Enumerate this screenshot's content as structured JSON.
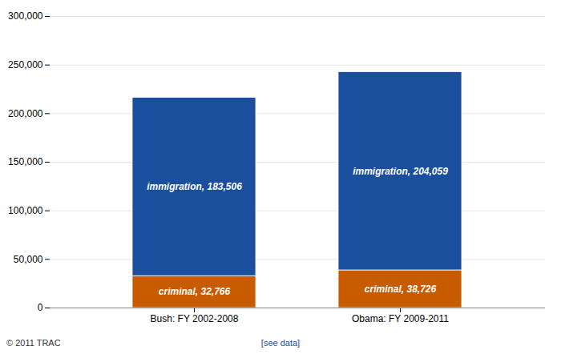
{
  "chart_data": {
    "type": "bar",
    "stacked": true,
    "categories": [
      "Bush: FY 2002-2008",
      "Obama: FY 2009-2011"
    ],
    "series": [
      {
        "color": "#c85a00",
        "values": [
          32766,
          38726
        ],
        "value_labels": [
          "criminal, 32,766",
          "criminal, 38,726"
        ]
      },
      {
        "color": "#1a4f9e",
        "values": [
          183506,
          204059
        ],
        "value_labels": [
          "immigration, 183,506",
          "immigration, 204,059"
        ]
      }
    ],
    "ylim": [
      0,
      300000
    ],
    "yticks": [
      0,
      {
        "value": 50000,
        "label": "50,000"
      },
      {
        "value": 100000,
        "label": "100,000"
      },
      {
        "value": 150000,
        "label": "150,000"
      },
      {
        "value": 200000,
        "label": "200,000"
      },
      {
        "value": 250000,
        "label": "250,000"
      },
      {
        "value": 300000,
        "label": "300,000"
      }
    ],
    "grid": true,
    "annotations": [
      "© 2011 TRAC",
      "[see data]"
    ]
  }
}
